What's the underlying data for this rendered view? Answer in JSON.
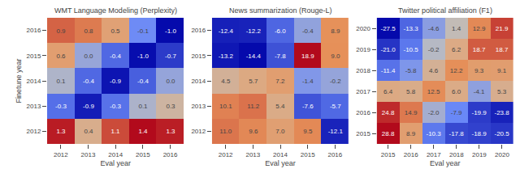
{
  "chart_data": [
    {
      "type": "heatmap",
      "title": "WMT Language Modeling (Perplexity)",
      "xlabel": "Eval year",
      "ylabel": "Finetune year",
      "x": [
        "2012",
        "2013",
        "2014",
        "2015",
        "2016"
      ],
      "y": [
        "2016",
        "2015",
        "2014",
        "2013",
        "2012"
      ],
      "values": [
        [
          0.95,
          0.82,
          0.54,
          -0.14,
          -1.01
        ],
        [
          0.57,
          0.04,
          -0.38,
          -0.99,
          -0.68
        ],
        [
          0.14,
          -0.38,
          -0.94,
          -0.44,
          0.03
        ],
        [
          -0.33,
          -0.89,
          -0.31,
          0.13,
          0.33
        ],
        [
          1.33,
          0.42,
          1.08,
          1.43,
          1.32
        ]
      ],
      "value_labels": [
        [
          "0.9",
          "0.8",
          "0.5",
          "-0.1",
          "-1.0"
        ],
        [
          "0.6",
          "0.0",
          "-0.4",
          "-1.0",
          "-0.7"
        ],
        [
          "0.1",
          "-0.4",
          "-0.9",
          "-0.4",
          "0.0"
        ],
        [
          "-0.3",
          "-0.9",
          "-0.3",
          "0.1",
          "0.3"
        ],
        [
          "1.3",
          "0.4",
          "1.1",
          "1.4",
          "1.3"
        ]
      ],
      "data_labels": true,
      "grid": false
    },
    {
      "type": "heatmap",
      "title": "News summarization (Rouge-L)",
      "xlabel": "Eval year",
      "x": [
        "2012",
        "2013",
        "2014",
        "2015",
        "2016"
      ],
      "y": [
        "2016",
        "2015",
        "2014",
        "2013",
        "2012"
      ],
      "values": [
        [
          -12.4,
          -12.2,
          -6.0,
          -0.4,
          8.9
        ],
        [
          -13.2,
          -14.4,
          -7.8,
          18.9,
          9.0
        ],
        [
          4.5,
          5.7,
          7.2,
          -1.4,
          -0.2
        ],
        [
          10.1,
          11.2,
          5.4,
          -7.6,
          -5.7
        ],
        [
          11.0,
          9.6,
          7.0,
          9.5,
          -12.1
        ]
      ],
      "value_labels": [
        [
          "-12.4",
          "-12.2",
          "-6.0",
          "-0.4",
          "8.9"
        ],
        [
          "-13.2",
          "-14.4",
          "-7.8",
          "18.9",
          "9.0"
        ],
        [
          "4.5",
          "5.7",
          "7.2",
          "-1.4",
          "-0.2"
        ],
        [
          "10.1",
          "11.2",
          "5.4",
          "-7.6",
          "-5.7"
        ],
        [
          "11.0",
          "9.6",
          "7.0",
          "9.5",
          "-12.1"
        ]
      ],
      "data_labels": true,
      "grid": false
    },
    {
      "type": "heatmap",
      "title": "Twitter political affiliation (F1)",
      "xlabel": "Eval year",
      "x": [
        "2015",
        "2016",
        "2017",
        "2018",
        "2019",
        "2020"
      ],
      "y": [
        "2020",
        "2019",
        "2018",
        "2017",
        "2016",
        "2015"
      ],
      "values": [
        [
          -27.5,
          -13.3,
          -4.6,
          1.4,
          12.9,
          21.9
        ],
        [
          -21.0,
          -10.5,
          -0.2,
          6.2,
          18.7,
          18.7
        ],
        [
          -11.4,
          -5.8,
          4.6,
          12.2,
          9.3,
          9.1
        ],
        [
          6.4,
          5.8,
          12.5,
          6.0,
          -4.1,
          5.3
        ],
        [
          24.8,
          14.9,
          -2.0,
          -7.9,
          -19.9,
          -23.8
        ],
        [
          28.8,
          8.9,
          -10.3,
          -17.8,
          -18.9,
          -20.5
        ]
      ],
      "value_labels": [
        [
          "-27.5",
          "-13.3",
          "-4.6",
          "1.4",
          "12.9",
          "21.9"
        ],
        [
          "-21.0",
          "-10.5",
          "-0.2",
          "6.2",
          "18.7",
          "18.7"
        ],
        [
          "-11.4",
          "-5.8",
          "4.6",
          "12.2",
          "9.3",
          "9.1"
        ],
        [
          "6.4",
          "5.8",
          "12.5",
          "6.0",
          "-4.1",
          "5.3"
        ],
        [
          "24.8",
          "14.9",
          "-2.0",
          "-7.9",
          "-19.9",
          "-23.8"
        ],
        [
          "28.8",
          "8.9",
          "-10.3",
          "-17.8",
          "-18.9",
          "-20.5"
        ]
      ],
      "data_labels": true,
      "grid": false
    }
  ]
}
